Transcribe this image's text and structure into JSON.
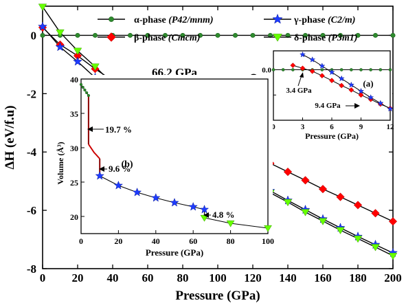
{
  "chart_data": [
    {
      "id": "main",
      "type": "line",
      "xlabel": "Pressure (GPa)",
      "ylabel": "ΔH (eV/f.u)",
      "xlim": [
        0,
        200
      ],
      "ylim": [
        -8,
        1
      ],
      "xticks": [
        0,
        20,
        40,
        60,
        80,
        100,
        120,
        140,
        160,
        180,
        200
      ],
      "yticks": [
        0,
        -2,
        -4,
        -6,
        -8
      ],
      "series": [
        {
          "name": "α-phase (P42/mnm)",
          "color": "#2e8b2e",
          "marker": "circle",
          "x": [
            0,
            10,
            20,
            30,
            40,
            50,
            60,
            70,
            80,
            90,
            100,
            110,
            120,
            130,
            140,
            150,
            160,
            170,
            180,
            190,
            200
          ],
          "y": [
            0,
            0,
            0,
            0,
            0,
            0,
            0,
            0,
            0,
            0,
            0,
            0,
            0,
            0,
            0,
            0,
            0,
            0,
            0,
            0,
            0
          ]
        },
        {
          "name": "β-phase (Cmcm)",
          "color": "#ff0000",
          "marker": "diamond",
          "x": [
            0,
            10,
            20,
            30,
            40,
            50,
            60,
            70,
            80,
            90,
            100,
            110,
            120,
            130,
            140,
            150,
            160,
            170,
            180,
            190,
            200
          ],
          "y": [
            0.27,
            -0.32,
            -0.7,
            -1.15,
            -1.55,
            -1.85,
            -2.17,
            -2.52,
            -2.86,
            -3.17,
            -3.48,
            -3.78,
            -4.1,
            -4.39,
            -4.68,
            -4.97,
            -5.27,
            -5.54,
            -5.82,
            -6.1,
            -6.38
          ]
        },
        {
          "name": "γ-phase (C2/m)",
          "color": "#1e3cff",
          "marker": "star",
          "x": [
            0,
            10,
            20,
            30,
            40,
            50,
            60,
            70,
            80,
            90,
            100,
            110,
            120,
            130,
            140,
            150,
            160,
            170,
            180,
            190,
            200
          ],
          "y": [
            0.3,
            -0.4,
            -0.9,
            -1.45,
            -1.92,
            -2.33,
            -2.76,
            -3.12,
            -3.55,
            -3.92,
            -4.27,
            -4.65,
            -4.99,
            -5.33,
            -5.66,
            -5.98,
            -6.3,
            -6.6,
            -6.9,
            -7.18,
            -7.46
          ]
        },
        {
          "name": "δ-phase (P3m1)",
          "color": "#66ff00",
          "marker": "triangle-down",
          "x": [
            0,
            10,
            20,
            30,
            40,
            50,
            60,
            70,
            80,
            90,
            100,
            110,
            120,
            130,
            140,
            150,
            160,
            170,
            180,
            190,
            200
          ],
          "y": [
            0.98,
            0.1,
            -0.53,
            -1.07,
            -1.66,
            -2.18,
            -2.7,
            -3.1,
            -3.57,
            -3.96,
            -4.35,
            -4.7,
            -5.05,
            -5.4,
            -5.72,
            -6.06,
            -6.37,
            -6.68,
            -6.97,
            -7.26,
            -7.56
          ]
        }
      ],
      "annotations": [
        {
          "text": "66.2 GPa",
          "x": 66.2
        }
      ]
    },
    {
      "id": "inset-a",
      "type": "line",
      "label": "(a)",
      "xlabel": "Pressure (GPa)",
      "ylabel": "ΔH (eV/f.u)",
      "xlim": [
        0,
        12
      ],
      "ylim": [
        -0.4,
        0.15
      ],
      "xticks": [
        0,
        3,
        6,
        9,
        12
      ],
      "yticks": [
        0.0,
        -0.2,
        -0.4
      ],
      "ytick_labels": [
        "0.0",
        "-0.2",
        "-0.4"
      ],
      "series": [
        {
          "name": "α-phase",
          "color": "#2e8b2e",
          "marker": "circle",
          "x": [
            0,
            1,
            2,
            3,
            4,
            5,
            6,
            7,
            8,
            9,
            10,
            11,
            12
          ],
          "y": [
            0,
            0,
            0,
            0,
            0,
            0,
            0,
            0,
            0,
            0,
            0,
            0,
            0
          ]
        },
        {
          "name": "β-phase",
          "color": "#ff0000",
          "marker": "diamond",
          "x": [
            2,
            3,
            4,
            5,
            6,
            7,
            8,
            9,
            10,
            11,
            12
          ],
          "y": [
            0.035,
            0.012,
            -0.012,
            -0.047,
            -0.085,
            -0.125,
            -0.16,
            -0.2,
            -0.235,
            -0.272,
            -0.305
          ]
        },
        {
          "name": "γ-phase",
          "color": "#1e3cff",
          "marker": "star",
          "x": [
            3,
            4,
            5,
            6,
            7,
            8,
            9,
            10,
            11,
            12
          ],
          "y": [
            0.12,
            0.08,
            0.03,
            -0.02,
            -0.07,
            -0.12,
            -0.17,
            -0.22,
            -0.265,
            -0.31
          ]
        }
      ],
      "annotations": [
        {
          "text": "3.4 GPa",
          "x": 3.4
        },
        {
          "text": "9.4 GPa",
          "x": 9.4
        }
      ]
    },
    {
      "id": "inset-b",
      "type": "line",
      "label": "(b)",
      "xlabel": "Pressure (GPa)",
      "ylabel": "Volume (Å³)",
      "xlim": [
        0,
        100
      ],
      "ylim": [
        17.5,
        40
      ],
      "xticks": [
        0,
        20,
        40,
        60,
        80,
        100
      ],
      "yticks": [
        20,
        25,
        30,
        35,
        40
      ],
      "series": [
        {
          "name": "α-phase",
          "color": "#2e8b2e",
          "marker": "circle",
          "x": [
            0,
            1,
            2,
            3,
            4
          ],
          "y": [
            39.2,
            38.8,
            38.4,
            38.0,
            37.6
          ]
        },
        {
          "name": "β-phase",
          "color": "#ff0000",
          "marker": "diamond",
          "x": [
            4,
            5,
            6,
            7,
            8,
            9,
            10
          ],
          "y": [
            30.5,
            30.1,
            29.7,
            29.3,
            29.0,
            28.7,
            28.4
          ]
        },
        {
          "name": "γ-phase",
          "color": "#1e3cff",
          "marker": "star",
          "x": [
            10,
            20,
            30,
            40,
            50,
            60,
            66
          ],
          "y": [
            25.9,
            24.5,
            23.5,
            22.7,
            22.0,
            21.4,
            21.0
          ]
        },
        {
          "name": "δ-phase",
          "color": "#66ff00",
          "marker": "triangle-down",
          "x": [
            66,
            80,
            100
          ],
          "y": [
            19.8,
            19.0,
            18.3
          ]
        }
      ],
      "annotations": [
        {
          "text": "19.7 %",
          "x": 4
        },
        {
          "text": "9.6 %",
          "x": 10
        },
        {
          "text": "4.8 %",
          "x": 66
        }
      ]
    }
  ],
  "legend": [
    {
      "series": "α-phase",
      "label_main": "α-phase",
      "label_sub": "(P42/mnm)"
    },
    {
      "series": "γ-phase",
      "label_main": "γ-phase",
      "label_sub": "(C2/m)"
    },
    {
      "series": "β-phase",
      "label_main": "β-phase",
      "label_sub": "(Cmcm)"
    },
    {
      "series": "δ-phase",
      "label_main": "δ-phase",
      "label_sub": "(P3m1)"
    }
  ]
}
